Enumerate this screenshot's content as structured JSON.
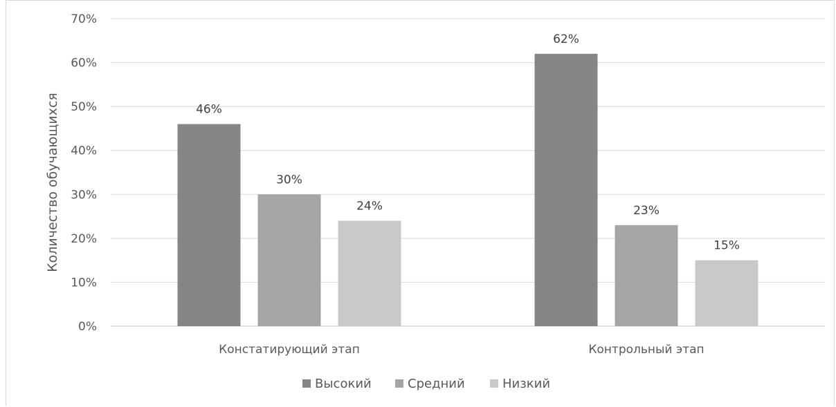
{
  "chart_data": {
    "type": "bar",
    "title": "",
    "xlabel": "",
    "ylabel": "Количество обучающихся",
    "categories": [
      "Констатирующий этап",
      "Контрольный этап"
    ],
    "series": [
      {
        "name": "Высокий",
        "values": [
          46,
          62
        ],
        "color": "#858585"
      },
      {
        "name": "Средний",
        "values": [
          30,
          23
        ],
        "color": "#a5a5a5"
      },
      {
        "name": "Низкий",
        "values": [
          24,
          15
        ],
        "color": "#c9c9c9"
      }
    ],
    "ylim": [
      0,
      70
    ],
    "yticks": [
      0,
      10,
      20,
      30,
      40,
      50,
      60,
      70
    ],
    "tick_format": "%",
    "data_labels": true,
    "grid": true,
    "legend": "bottom"
  }
}
